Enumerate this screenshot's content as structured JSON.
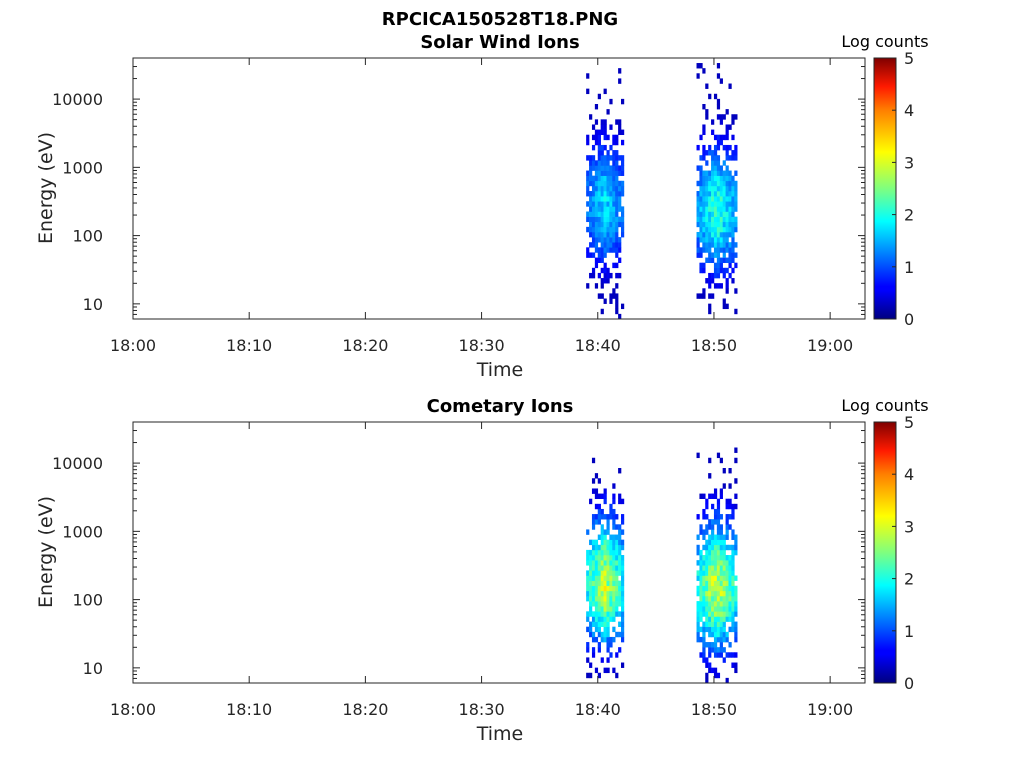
{
  "figure_title": "RPCICA150528T18.PNG",
  "colors": {
    "colormap": "jet",
    "axis": "#262626",
    "background": "#ffffff"
  },
  "chart_data": [
    {
      "type": "heatmap",
      "title": "Solar Wind Ions",
      "xlabel": "Time",
      "ylabel": "Energy (eV)",
      "yscale": "log",
      "ylim": [
        6,
        40000
      ],
      "xlim": [
        "18:00",
        "19:03"
      ],
      "xticks": [
        "18:00",
        "18:10",
        "18:20",
        "18:30",
        "18:40",
        "18:50",
        "19:00"
      ],
      "yticks": [
        10,
        100,
        1000,
        10000
      ],
      "ytick_labels": [
        "10",
        "100",
        "1000",
        "10000"
      ],
      "colorbar": {
        "label": "Log counts",
        "range": [
          0,
          5
        ],
        "ticks": [
          "0",
          "1",
          "2",
          "3",
          "4",
          "5"
        ],
        "colormap": "jet"
      },
      "clusters": [
        {
          "start": "18:39:00",
          "end": "18:42:15",
          "peak_energy_ev": 250,
          "peak_log_counts": 1.8,
          "max_energy_ev": 25000,
          "min_energy_ev": 6
        },
        {
          "start": "18:48:30",
          "end": "18:52:00",
          "peak_energy_ev": 200,
          "peak_log_counts": 2.2,
          "max_energy_ev": 32000,
          "min_energy_ev": 6
        }
      ]
    },
    {
      "type": "heatmap",
      "title": "Cometary Ions",
      "xlabel": "Time",
      "ylabel": "Energy (eV)",
      "yscale": "log",
      "ylim": [
        6,
        40000
      ],
      "xlim": [
        "18:00",
        "19:03"
      ],
      "xticks": [
        "18:00",
        "18:10",
        "18:20",
        "18:30",
        "18:40",
        "18:50",
        "19:00"
      ],
      "yticks": [
        10,
        100,
        1000,
        10000
      ],
      "ytick_labels": [
        "10",
        "100",
        "1000",
        "10000"
      ],
      "colorbar": {
        "label": "Log counts",
        "range": [
          0,
          5
        ],
        "ticks": [
          "0",
          "1",
          "2",
          "3",
          "4",
          "5"
        ],
        "colormap": "jet"
      },
      "clusters": [
        {
          "start": "18:39:00",
          "end": "18:42:15",
          "peak_energy_ev": 150,
          "peak_log_counts": 2.9,
          "max_energy_ev": 11000,
          "min_energy_ev": 6
        },
        {
          "start": "18:48:30",
          "end": "18:52:00",
          "peak_energy_ev": 130,
          "peak_log_counts": 3.0,
          "max_energy_ev": 22000,
          "min_energy_ev": 6
        }
      ]
    }
  ]
}
